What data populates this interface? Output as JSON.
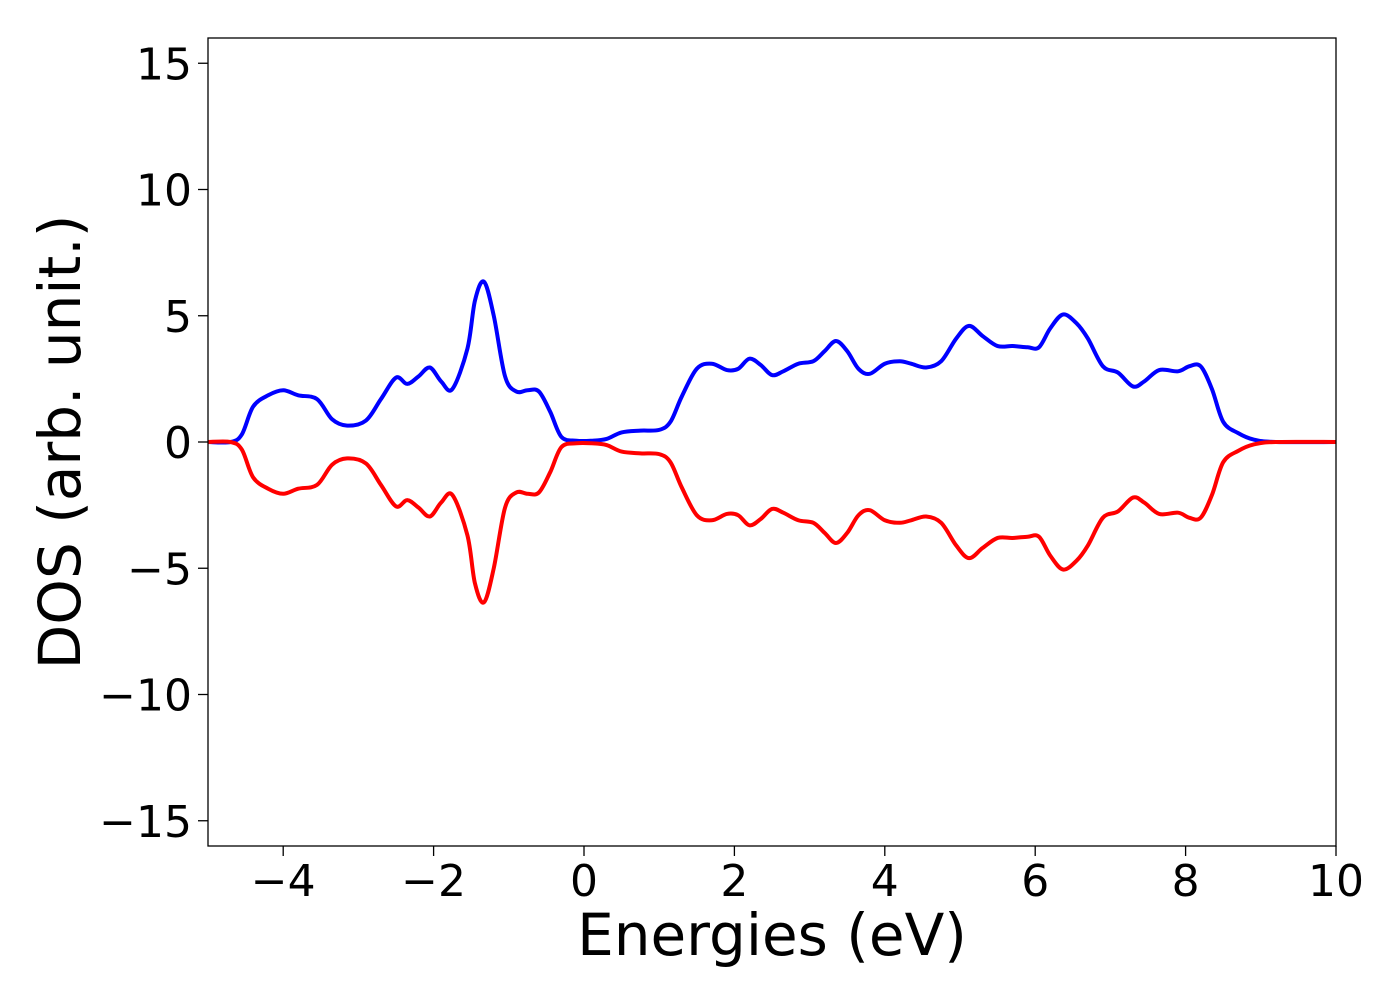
{
  "chart_data": {
    "type": "line",
    "title": "",
    "xlabel": "Energies (eV)",
    "ylabel": "DOS (arb. unit.)",
    "xlim": [
      -5,
      10
    ],
    "ylim": [
      -16,
      16
    ],
    "grid": false,
    "legend": "none",
    "x_ticks": [
      -4,
      -2,
      0,
      2,
      4,
      6,
      8,
      10
    ],
    "y_ticks": [
      -15,
      -10,
      -5,
      0,
      5,
      10,
      15
    ],
    "x_tick_labels": [
      "−4",
      "−2",
      "0",
      "2",
      "4",
      "6",
      "8",
      "10"
    ],
    "y_tick_labels": [
      "−15",
      "−10",
      "−5",
      "0",
      "5",
      "10",
      "15"
    ],
    "series": [
      {
        "color": "#0000ff",
        "points": [
          [
            -5.0,
            0.0
          ],
          [
            -4.7,
            0.0
          ],
          [
            -4.55,
            0.3
          ],
          [
            -4.4,
            1.4
          ],
          [
            -4.2,
            1.85
          ],
          [
            -4.0,
            2.05
          ],
          [
            -3.8,
            1.85
          ],
          [
            -3.55,
            1.7
          ],
          [
            -3.35,
            0.9
          ],
          [
            -3.15,
            0.65
          ],
          [
            -2.9,
            0.85
          ],
          [
            -2.7,
            1.7
          ],
          [
            -2.5,
            2.55
          ],
          [
            -2.35,
            2.3
          ],
          [
            -2.2,
            2.6
          ],
          [
            -2.05,
            2.95
          ],
          [
            -1.9,
            2.4
          ],
          [
            -1.75,
            2.1
          ],
          [
            -1.55,
            3.7
          ],
          [
            -1.45,
            5.6
          ],
          [
            -1.33,
            6.35
          ],
          [
            -1.2,
            5.0
          ],
          [
            -1.05,
            2.6
          ],
          [
            -0.9,
            2.0
          ],
          [
            -0.75,
            2.05
          ],
          [
            -0.6,
            2.0
          ],
          [
            -0.45,
            1.2
          ],
          [
            -0.3,
            0.2
          ],
          [
            -0.1,
            0.05
          ],
          [
            0.1,
            0.05
          ],
          [
            0.3,
            0.12
          ],
          [
            0.5,
            0.38
          ],
          [
            0.75,
            0.45
          ],
          [
            1.0,
            0.48
          ],
          [
            1.15,
            0.8
          ],
          [
            1.3,
            1.8
          ],
          [
            1.5,
            2.9
          ],
          [
            1.7,
            3.1
          ],
          [
            1.9,
            2.85
          ],
          [
            2.05,
            2.9
          ],
          [
            2.2,
            3.3
          ],
          [
            2.35,
            3.05
          ],
          [
            2.5,
            2.65
          ],
          [
            2.65,
            2.8
          ],
          [
            2.85,
            3.1
          ],
          [
            3.05,
            3.2
          ],
          [
            3.2,
            3.6
          ],
          [
            3.35,
            4.0
          ],
          [
            3.5,
            3.6
          ],
          [
            3.65,
            2.9
          ],
          [
            3.8,
            2.7
          ],
          [
            4.0,
            3.1
          ],
          [
            4.2,
            3.2
          ],
          [
            4.35,
            3.1
          ],
          [
            4.55,
            2.95
          ],
          [
            4.75,
            3.2
          ],
          [
            4.95,
            4.1
          ],
          [
            5.12,
            4.6
          ],
          [
            5.3,
            4.2
          ],
          [
            5.5,
            3.8
          ],
          [
            5.7,
            3.8
          ],
          [
            5.9,
            3.75
          ],
          [
            6.05,
            3.75
          ],
          [
            6.2,
            4.5
          ],
          [
            6.37,
            5.05
          ],
          [
            6.55,
            4.7
          ],
          [
            6.7,
            4.1
          ],
          [
            6.9,
            3.0
          ],
          [
            7.1,
            2.75
          ],
          [
            7.3,
            2.2
          ],
          [
            7.45,
            2.4
          ],
          [
            7.65,
            2.85
          ],
          [
            7.9,
            2.8
          ],
          [
            8.05,
            3.0
          ],
          [
            8.2,
            3.0
          ],
          [
            8.35,
            2.1
          ],
          [
            8.5,
            0.8
          ],
          [
            8.7,
            0.35
          ],
          [
            8.9,
            0.1
          ],
          [
            9.2,
            0.0
          ],
          [
            10.0,
            0.0
          ]
        ]
      },
      {
        "color": "#ff0000",
        "points": [
          [
            -5.0,
            0.0
          ],
          [
            -4.7,
            0.0
          ],
          [
            -4.55,
            -0.3
          ],
          [
            -4.4,
            -1.4
          ],
          [
            -4.2,
            -1.85
          ],
          [
            -4.0,
            -2.05
          ],
          [
            -3.8,
            -1.85
          ],
          [
            -3.55,
            -1.7
          ],
          [
            -3.35,
            -0.9
          ],
          [
            -3.15,
            -0.65
          ],
          [
            -2.9,
            -0.85
          ],
          [
            -2.7,
            -1.7
          ],
          [
            -2.5,
            -2.55
          ],
          [
            -2.35,
            -2.3
          ],
          [
            -2.2,
            -2.6
          ],
          [
            -2.05,
            -2.95
          ],
          [
            -1.9,
            -2.4
          ],
          [
            -1.75,
            -2.1
          ],
          [
            -1.55,
            -3.7
          ],
          [
            -1.45,
            -5.6
          ],
          [
            -1.33,
            -6.35
          ],
          [
            -1.2,
            -5.0
          ],
          [
            -1.05,
            -2.6
          ],
          [
            -0.9,
            -2.0
          ],
          [
            -0.75,
            -2.05
          ],
          [
            -0.6,
            -2.0
          ],
          [
            -0.45,
            -1.2
          ],
          [
            -0.3,
            -0.2
          ],
          [
            -0.1,
            -0.05
          ],
          [
            0.1,
            -0.05
          ],
          [
            0.3,
            -0.12
          ],
          [
            0.5,
            -0.38
          ],
          [
            0.75,
            -0.45
          ],
          [
            1.0,
            -0.48
          ],
          [
            1.15,
            -0.8
          ],
          [
            1.3,
            -1.8
          ],
          [
            1.5,
            -2.9
          ],
          [
            1.7,
            -3.1
          ],
          [
            1.9,
            -2.85
          ],
          [
            2.05,
            -2.9
          ],
          [
            2.2,
            -3.3
          ],
          [
            2.35,
            -3.05
          ],
          [
            2.5,
            -2.65
          ],
          [
            2.65,
            -2.8
          ],
          [
            2.85,
            -3.1
          ],
          [
            3.05,
            -3.2
          ],
          [
            3.2,
            -3.6
          ],
          [
            3.35,
            -4.0
          ],
          [
            3.5,
            -3.6
          ],
          [
            3.65,
            -2.9
          ],
          [
            3.8,
            -2.7
          ],
          [
            4.0,
            -3.1
          ],
          [
            4.2,
            -3.2
          ],
          [
            4.35,
            -3.1
          ],
          [
            4.55,
            -2.95
          ],
          [
            4.75,
            -3.2
          ],
          [
            4.95,
            -4.1
          ],
          [
            5.12,
            -4.6
          ],
          [
            5.3,
            -4.2
          ],
          [
            5.5,
            -3.8
          ],
          [
            5.7,
            -3.8
          ],
          [
            5.9,
            -3.75
          ],
          [
            6.05,
            -3.75
          ],
          [
            6.2,
            -4.5
          ],
          [
            6.37,
            -5.05
          ],
          [
            6.55,
            -4.7
          ],
          [
            6.7,
            -4.1
          ],
          [
            6.9,
            -3.0
          ],
          [
            7.1,
            -2.75
          ],
          [
            7.3,
            -2.2
          ],
          [
            7.45,
            -2.4
          ],
          [
            7.65,
            -2.85
          ],
          [
            7.9,
            -2.8
          ],
          [
            8.05,
            -3.0
          ],
          [
            8.2,
            -3.0
          ],
          [
            8.35,
            -2.1
          ],
          [
            8.5,
            -0.8
          ],
          [
            8.7,
            -0.35
          ],
          [
            8.9,
            -0.1
          ],
          [
            9.2,
            0.0
          ],
          [
            10.0,
            0.0
          ]
        ]
      }
    ]
  }
}
